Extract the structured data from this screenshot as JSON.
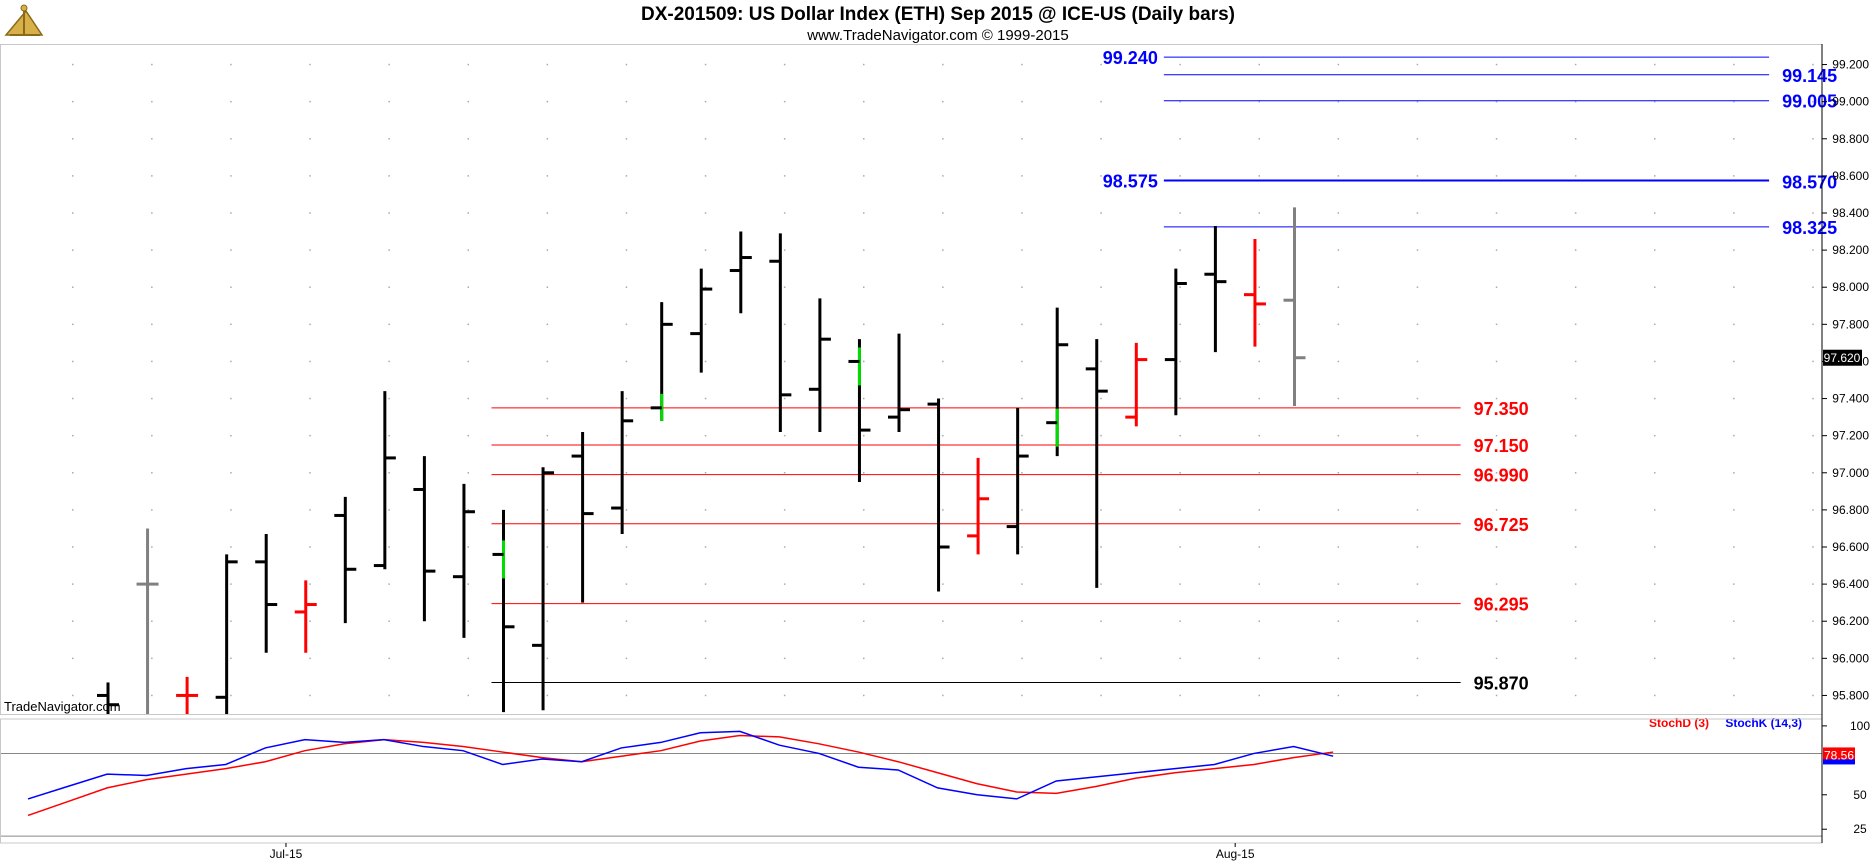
{
  "chart_data": {
    "type": "ohlc",
    "title": "DX-201509:  US Dollar Index (ETH) Sep 2015 @ ICE-US  (Daily bars)",
    "subtitle": "www.TradeNavigator.com © 1999-2015",
    "watermark": "TradeNavigator.com",
    "price_axis": {
      "ylim": [
        95.7,
        99.3
      ],
      "ticks": [
        "95.800",
        "96.000",
        "96.200",
        "96.400",
        "96.600",
        "96.800",
        "97.000",
        "97.200",
        "97.400",
        "97.600",
        "97.800",
        "98.000",
        "98.200",
        "98.400",
        "98.600",
        "98.800",
        "99.000",
        "99.200"
      ],
      "last_price": "97.620"
    },
    "x_axis": {
      "labels": [
        {
          "label": "Jul-15",
          "bar": 4.5
        },
        {
          "label": "Aug-15",
          "bar": 28.5
        }
      ]
    },
    "grid": "dotted",
    "colors": {
      "up": "#000000",
      "down": "#ff0000",
      "current": "#808080",
      "blue": "#0000ff",
      "green": "#00dd00"
    },
    "bars": [
      {
        "o": 95.8,
        "h": 95.87,
        "l": 95.7,
        "c": 95.75,
        "color": "black"
      },
      {
        "o": 96.4,
        "h": 96.7,
        "l": 95.7,
        "c": 96.4,
        "color": "gray"
      },
      {
        "o": 95.8,
        "h": 95.9,
        "l": 95.7,
        "c": 95.8,
        "color": "red"
      },
      {
        "o": 95.79,
        "h": 96.56,
        "l": 95.7,
        "c": 96.52,
        "color": "black"
      },
      {
        "o": 96.52,
        "h": 96.67,
        "l": 96.03,
        "c": 96.29,
        "color": "black"
      },
      {
        "o": 96.25,
        "h": 96.42,
        "l": 96.03,
        "c": 96.29,
        "color": "red"
      },
      {
        "o": 96.77,
        "h": 96.87,
        "l": 96.19,
        "c": 96.48,
        "color": "black"
      },
      {
        "o": 96.5,
        "h": 97.44,
        "l": 96.48,
        "c": 97.08,
        "color": "black"
      },
      {
        "o": 96.91,
        "h": 97.09,
        "l": 96.2,
        "c": 96.47,
        "color": "black"
      },
      {
        "o": 96.44,
        "h": 96.94,
        "l": 96.11,
        "c": 96.79,
        "color": "black"
      },
      {
        "o": 96.56,
        "h": 96.8,
        "l": 95.71,
        "c": 96.17,
        "color": "black",
        "wick": "green"
      },
      {
        "o": 96.07,
        "h": 97.03,
        "l": 95.72,
        "c": 97.0,
        "color": "black"
      },
      {
        "o": 97.09,
        "h": 97.22,
        "l": 96.3,
        "c": 96.78,
        "color": "black"
      },
      {
        "o": 96.81,
        "h": 97.44,
        "l": 96.67,
        "c": 97.28,
        "color": "black"
      },
      {
        "o": 97.35,
        "h": 97.92,
        "l": 97.28,
        "c": 97.8,
        "color": "black",
        "wick": "green"
      },
      {
        "o": 97.75,
        "h": 98.1,
        "l": 97.54,
        "c": 97.99,
        "color": "black"
      },
      {
        "o": 98.09,
        "h": 98.3,
        "l": 97.86,
        "c": 98.16,
        "color": "black"
      },
      {
        "o": 98.14,
        "h": 98.29,
        "l": 97.22,
        "c": 97.42,
        "color": "black"
      },
      {
        "o": 97.45,
        "h": 97.94,
        "l": 97.22,
        "c": 97.72,
        "color": "black"
      },
      {
        "o": 97.6,
        "h": 97.72,
        "l": 96.95,
        "c": 97.23,
        "color": "black",
        "wick": "green"
      },
      {
        "o": 97.3,
        "h": 97.75,
        "l": 97.22,
        "c": 97.34,
        "color": "black"
      },
      {
        "o": 97.37,
        "h": 97.4,
        "l": 96.36,
        "c": 96.6,
        "color": "black"
      },
      {
        "o": 96.66,
        "h": 97.08,
        "l": 96.56,
        "c": 96.86,
        "color": "red"
      },
      {
        "o": 96.71,
        "h": 97.35,
        "l": 96.56,
        "c": 97.09,
        "color": "black"
      },
      {
        "o": 97.27,
        "h": 97.89,
        "l": 97.09,
        "c": 97.69,
        "color": "black",
        "wick": "green"
      },
      {
        "o": 97.56,
        "h": 97.72,
        "l": 96.38,
        "c": 97.44,
        "color": "black"
      },
      {
        "o": 97.3,
        "h": 97.7,
        "l": 97.25,
        "c": 97.61,
        "color": "red"
      },
      {
        "o": 97.61,
        "h": 98.1,
        "l": 97.31,
        "c": 98.02,
        "color": "black"
      },
      {
        "o": 98.07,
        "h": 98.33,
        "l": 97.65,
        "c": 98.03,
        "color": "black"
      },
      {
        "o": 97.96,
        "h": 98.26,
        "l": 97.68,
        "c": 97.91,
        "color": "red"
      },
      {
        "o": 97.93,
        "h": 98.43,
        "l": 97.36,
        "c": 97.62,
        "color": "gray"
      }
    ],
    "levels": [
      {
        "value": 99.24,
        "label": "99.240",
        "color": "blue",
        "from_bar": 27,
        "to_bar": 42,
        "label_side": "left"
      },
      {
        "value": 99.145,
        "label": "99.145",
        "color": "blue",
        "from_bar": 27,
        "to_bar": 42,
        "label_side": "right"
      },
      {
        "value": 99.005,
        "label": "99.005",
        "color": "blue",
        "from_bar": 27,
        "to_bar": 42,
        "label_side": "right"
      },
      {
        "value": 98.575,
        "label": "98.575",
        "color": "blue",
        "from_bar": 27,
        "to_bar": 42,
        "label_side": "left",
        "bold": true
      },
      {
        "value": 98.57,
        "label": "98.570",
        "color": "blue",
        "from_bar": 27,
        "to_bar": 42,
        "label_side": "right",
        "hidden_line": true
      },
      {
        "value": 98.325,
        "label": "98.325",
        "color": "blue",
        "from_bar": 27,
        "to_bar": 42,
        "label_side": "right"
      },
      {
        "value": 97.35,
        "label": "97.350",
        "color": "red",
        "from_bar": 10,
        "to_bar": 34.2,
        "label_side": "right"
      },
      {
        "value": 97.15,
        "label": "97.150",
        "color": "red",
        "from_bar": 10,
        "to_bar": 34.2,
        "label_side": "right"
      },
      {
        "value": 96.99,
        "label": "96.990",
        "color": "red",
        "from_bar": 10,
        "to_bar": 34.2,
        "label_side": "right"
      },
      {
        "value": 96.725,
        "label": "96.725",
        "color": "red",
        "from_bar": 10,
        "to_bar": 34.2,
        "label_side": "right"
      },
      {
        "value": 96.295,
        "label": "96.295",
        "color": "red",
        "from_bar": 10,
        "to_bar": 34.2,
        "label_side": "right"
      },
      {
        "value": 95.87,
        "label": "95.870",
        "color": "black",
        "from_bar": 10,
        "to_bar": 34.2,
        "label_side": "right"
      }
    ],
    "stochastic": {
      "ylim": [
        15,
        105
      ],
      "ticks": [
        "25",
        "50",
        "100"
      ],
      "ref_lines": [
        20,
        80
      ],
      "legend": [
        {
          "name": "StochD (3)",
          "color": "red"
        },
        {
          "name": "StochK (14,3)",
          "color": "blue"
        }
      ],
      "last_value": "78.56",
      "k": [
        47,
        56,
        65,
        64,
        69,
        72,
        84,
        90,
        88,
        90,
        85,
        82,
        72,
        76,
        74,
        84,
        88,
        95,
        96,
        86,
        80,
        70,
        68,
        55,
        50,
        47,
        60,
        63,
        66,
        69,
        72,
        80,
        85,
        78
      ],
      "d": [
        35,
        45,
        55,
        61,
        65,
        69,
        74,
        82,
        87,
        90,
        88,
        85,
        81,
        77,
        74,
        78,
        82,
        89,
        93,
        92,
        87,
        81,
        74,
        66,
        58,
        52,
        51,
        56,
        62,
        66,
        69,
        72,
        77,
        81
      ]
    }
  }
}
